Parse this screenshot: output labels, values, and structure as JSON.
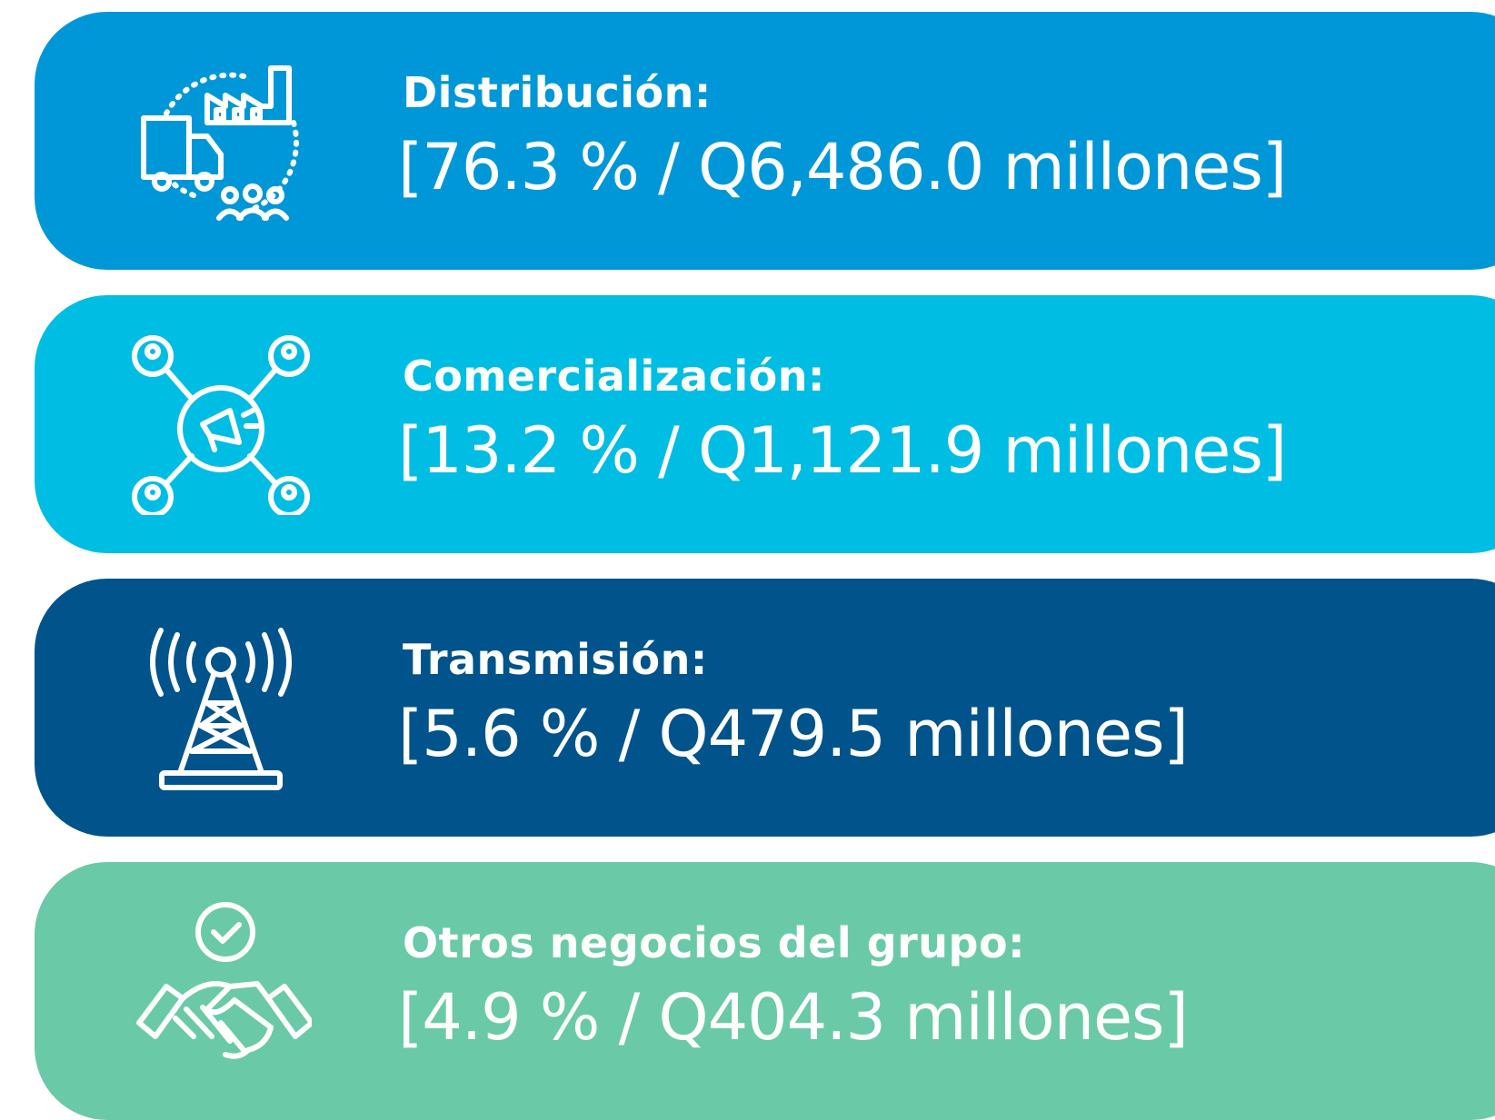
{
  "items": [
    {
      "title": "Distribución:",
      "detail": "[76.3 % / Q6,486.0 millones]"
    },
    {
      "title": "Comercialización:",
      "detail": "[13.2 % / Q1,121.9 millones]"
    },
    {
      "title": "Transmisión:",
      "detail": "[5.6 % / Q479.5 millones]"
    },
    {
      "title": "Otros negocios del grupo:",
      "detail": "[4.9 % / Q404.3 millones]"
    }
  ]
}
